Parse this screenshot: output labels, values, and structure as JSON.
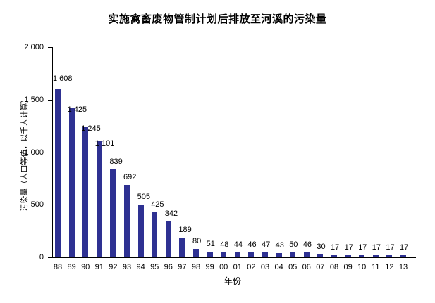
{
  "chart_data": {
    "type": "bar",
    "title": "实施禽畜废物管制计划后排放至河溪的污染量",
    "xlabel": "年份",
    "ylabel": "污染量（人口等值，以千人计算）",
    "categories": [
      "88",
      "89",
      "90",
      "91",
      "92",
      "93",
      "94",
      "95",
      "96",
      "97",
      "98",
      "99",
      "00",
      "01",
      "02",
      "03",
      "04",
      "05",
      "06",
      "07",
      "08",
      "09",
      "10",
      "11",
      "12",
      "13"
    ],
    "values": [
      1608,
      1425,
      1245,
      1101,
      839,
      692,
      505,
      425,
      342,
      189,
      80,
      51,
      48,
      44,
      46,
      47,
      43,
      50,
      46,
      30,
      17,
      17,
      17,
      17,
      17,
      17
    ],
    "value_labels": [
      "1 608",
      "1 425",
      "1 245",
      "1 101",
      "839",
      "692",
      "505",
      "425",
      "342",
      "189",
      "80",
      "51",
      "48",
      "44",
      "46",
      "47",
      "43",
      "50",
      "46",
      "30",
      "17",
      "17",
      "17",
      "17",
      "17",
      "17"
    ],
    "ylim": [
      0,
      2000
    ],
    "yticks": [
      0,
      500,
      1000,
      1500,
      2000
    ],
    "ytick_labels": [
      "0",
      "500",
      "1 000",
      "1 500",
      "2 000"
    ],
    "grid": false,
    "legend": null,
    "bar_color": "#2e3192"
  }
}
